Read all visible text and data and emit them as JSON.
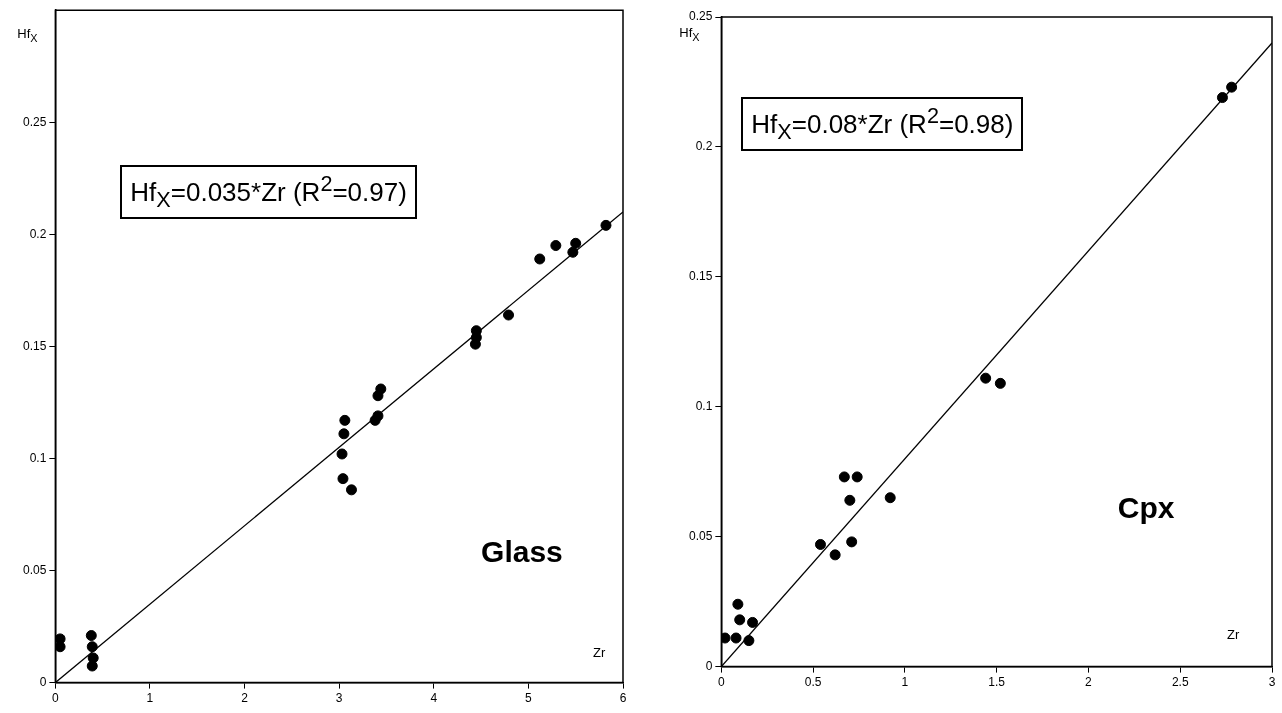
{
  "chart_data": [
    {
      "type": "scatter",
      "xlabel": "Zr",
      "ylabel": "Hf$_{X}$",
      "xlim": [
        0,
        6
      ],
      "ylim": [
        0,
        0.3
      ],
      "xticks": [
        0,
        1,
        2,
        3,
        4,
        5,
        6
      ],
      "yticks": [
        0,
        0.05,
        0.1,
        0.15,
        0.2,
        0.25
      ],
      "grid": false,
      "legend": false,
      "marker": "circle",
      "annotations": [
        "Hf$_{X}$=0.035*Zr (R$^{2}$=0.97)",
        "Glass"
      ],
      "series": [
        {
          "color": "#000000",
          "x": [
            0.05,
            0.05,
            0.38,
            0.39,
            0.4,
            0.39,
            3.03,
            3.05,
            3.06,
            3.04,
            3.13,
            3.38,
            3.41,
            3.41,
            3.44,
            4.45,
            4.44,
            4.45,
            4.79,
            5.12,
            5.29,
            5.47,
            5.5,
            5.82
          ],
          "values": [
            0.0195,
            0.016,
            0.021,
            0.016,
            0.011,
            0.0074,
            0.102,
            0.111,
            0.117,
            0.091,
            0.086,
            0.117,
            0.119,
            0.128,
            0.131,
            0.157,
            0.151,
            0.154,
            0.164,
            0.189,
            0.195,
            0.192,
            0.196,
            0.204
          ]
        },
        {
          "type": "line",
          "color": "#000000",
          "marker": "none",
          "x": [
            0,
            6
          ],
          "values": [
            0,
            0.21
          ]
        }
      ]
    },
    {
      "type": "scatter",
      "xlabel": "Zr",
      "ylabel": "Hf$_{X}$",
      "xlim": [
        0,
        3
      ],
      "ylim": [
        0,
        0.25
      ],
      "xticks": [
        0,
        0.5,
        1,
        1.5,
        2,
        2.5,
        3
      ],
      "yticks": [
        0,
        0.05,
        0.1,
        0.15,
        0.2,
        0.25
      ],
      "grid": false,
      "legend": false,
      "marker": "circle",
      "annotations": [
        "Hf$_{X}$=0.08*Zr (R$^{2}$=0.98)",
        "Cpx"
      ],
      "series": [
        {
          "color": "#000000",
          "x": [
            0.02,
            0.08,
            0.15,
            0.09,
            0.1,
            0.17,
            0.54,
            0.62,
            0.67,
            0.74,
            0.7,
            0.71,
            0.92,
            1.44,
            1.52,
            2.73,
            2.78
          ],
          "values": [
            0.011,
            0.011,
            0.01,
            0.024,
            0.018,
            0.017,
            0.047,
            0.043,
            0.073,
            0.073,
            0.064,
            0.048,
            0.065,
            0.111,
            0.109,
            0.219,
            0.223
          ]
        },
        {
          "type": "line",
          "color": "#000000",
          "marker": "none",
          "x": [
            0,
            3
          ],
          "values": [
            0,
            0.24
          ]
        }
      ]
    }
  ]
}
